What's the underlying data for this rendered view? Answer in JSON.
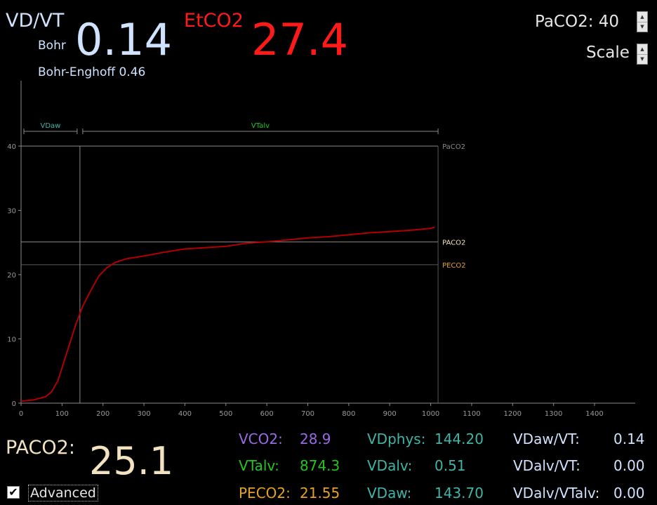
{
  "header": {
    "vdvt_label": "VD/VT",
    "bohr_label": "Bohr",
    "bohr_value": "0.14",
    "bohr_enghoff": "Bohr-Enghoff 0.46",
    "etco2_label": "EtCO2",
    "etco2_value": "27.4",
    "paco2_setting": "PaCO2: 40",
    "scale_label": "Scale"
  },
  "colors": {
    "curve": "#b00000",
    "etco2": "#ff1a1a",
    "bohr": "#cfe3ff",
    "vco2": "#9a6ae6",
    "vtalv": "#21c521",
    "peco2": "#e6a21e",
    "vd": "#3fb5a8",
    "ratio": "#cfe3ff"
  },
  "chart_data": {
    "type": "line",
    "xlim": [
      0,
      1400
    ],
    "ylim": [
      0,
      40
    ],
    "x_ticks": [
      "0",
      "100",
      "200",
      "300",
      "400",
      "500",
      "600",
      "700",
      "800",
      "900",
      "1000",
      "1100",
      "1200",
      "1300",
      "1400"
    ],
    "y_ticks": [
      "0",
      "10",
      "20",
      "30",
      "40"
    ],
    "series": [
      {
        "x": [
          0,
          30,
          60,
          75,
          90,
          105,
          120,
          135,
          150,
          170,
          190,
          210,
          230,
          260,
          300,
          350,
          400,
          450,
          500,
          550,
          600,
          650,
          700,
          750,
          800,
          850,
          900,
          950,
          1000,
          1010
        ],
        "y": [
          0.3,
          0.5,
          1.0,
          1.8,
          3.5,
          6.5,
          9.5,
          12.5,
          15.0,
          17.5,
          19.8,
          21.1,
          21.9,
          22.5,
          22.9,
          23.5,
          24.0,
          24.2,
          24.4,
          24.9,
          25.1,
          25.4,
          25.7,
          25.9,
          26.2,
          26.5,
          26.7,
          26.9,
          27.2,
          27.4
        ]
      }
    ],
    "reference_lines": [
      {
        "label": "PaCO2",
        "y": 40
      },
      {
        "label": "PACO2",
        "y": 25.1
      },
      {
        "label": "PECO2",
        "y": 21.55
      }
    ],
    "segments": [
      {
        "label": "VDaw",
        "x_start": 0,
        "x_end": 143.7
      },
      {
        "label": "VTalv",
        "x_start": 143.7,
        "x_end": 1018
      }
    ]
  },
  "footer": {
    "paco2_label": "PACO2:",
    "paco2_value": "25.1",
    "advanced_label": "Advanced",
    "stats": [
      {
        "label": "VCO2:",
        "value": "28.9"
      },
      {
        "label": "VTalv:",
        "value": "874.3"
      },
      {
        "label": "PECO2:",
        "value": "21.55"
      },
      {
        "label": "VDphys:",
        "value": "144.20"
      },
      {
        "label": "VDalv:",
        "value": "0.51"
      },
      {
        "label": "VDaw:",
        "value": "143.70"
      },
      {
        "label": "VDaw/VT:",
        "value": "0.14"
      },
      {
        "label": "VDalv/VT:",
        "value": "0.00"
      },
      {
        "label": "VDalv/VTalv:",
        "value": "0.00"
      }
    ]
  }
}
